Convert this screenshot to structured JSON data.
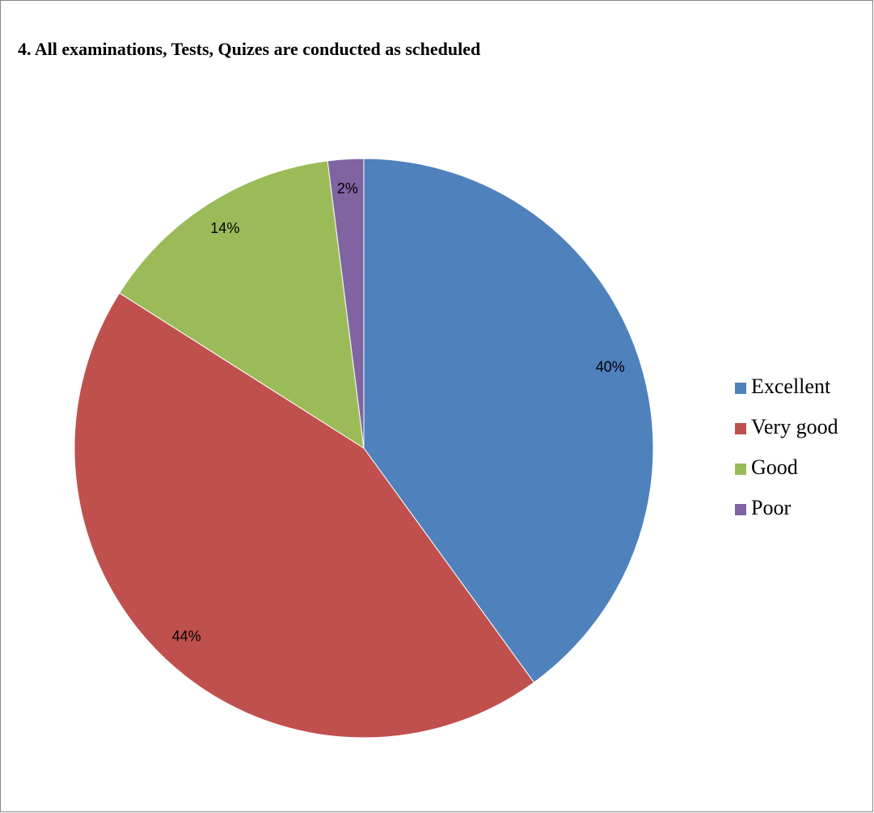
{
  "chart_data": {
    "type": "pie",
    "title": "4. All examinations, Tests, Quizes are conducted as scheduled",
    "categories": [
      "Excellent",
      "Very good",
      "Good",
      "Poor"
    ],
    "values": [
      40,
      44,
      14,
      2
    ],
    "value_labels": [
      "40%",
      "44%",
      "14%",
      "2%"
    ],
    "colors": [
      "#4f81bd",
      "#c0504d",
      "#9bbb59",
      "#8064a2"
    ],
    "legend": "right"
  }
}
